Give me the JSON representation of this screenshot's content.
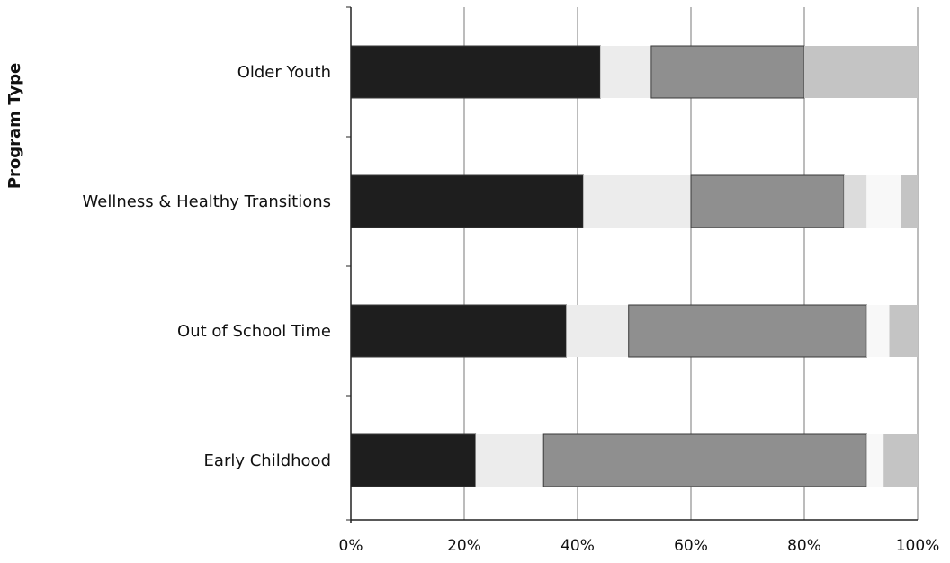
{
  "chart_data": {
    "type": "bar",
    "orientation": "horizontal",
    "stacked": true,
    "ylabel": "Program Type",
    "xlabel": "",
    "categories": [
      "Older Youth",
      "Wellness & Healthy Transitions",
      "Out of School Time",
      "Early Childhood"
    ],
    "x_ticks": [
      "0%",
      "20%",
      "40%",
      "60%",
      "80%",
      "100%"
    ],
    "xlim": [
      0,
      100
    ],
    "grid": true,
    "legend": "none",
    "series": [
      {
        "color": "#1e1e1e",
        "values": [
          44,
          41,
          38,
          22
        ]
      },
      {
        "color": "#ececec",
        "values": [
          9,
          19,
          11,
          12
        ]
      },
      {
        "color": "#8f8f8f",
        "values": [
          27,
          27,
          42,
          57
        ]
      },
      {
        "color": "#dcdcdc",
        "values": [
          0,
          4,
          0,
          0
        ]
      },
      {
        "color": "#f8f8f8",
        "values": [
          0,
          6,
          4,
          3
        ]
      },
      {
        "color": "#c4c4c4",
        "values": [
          20,
          3,
          5,
          6
        ]
      }
    ]
  }
}
